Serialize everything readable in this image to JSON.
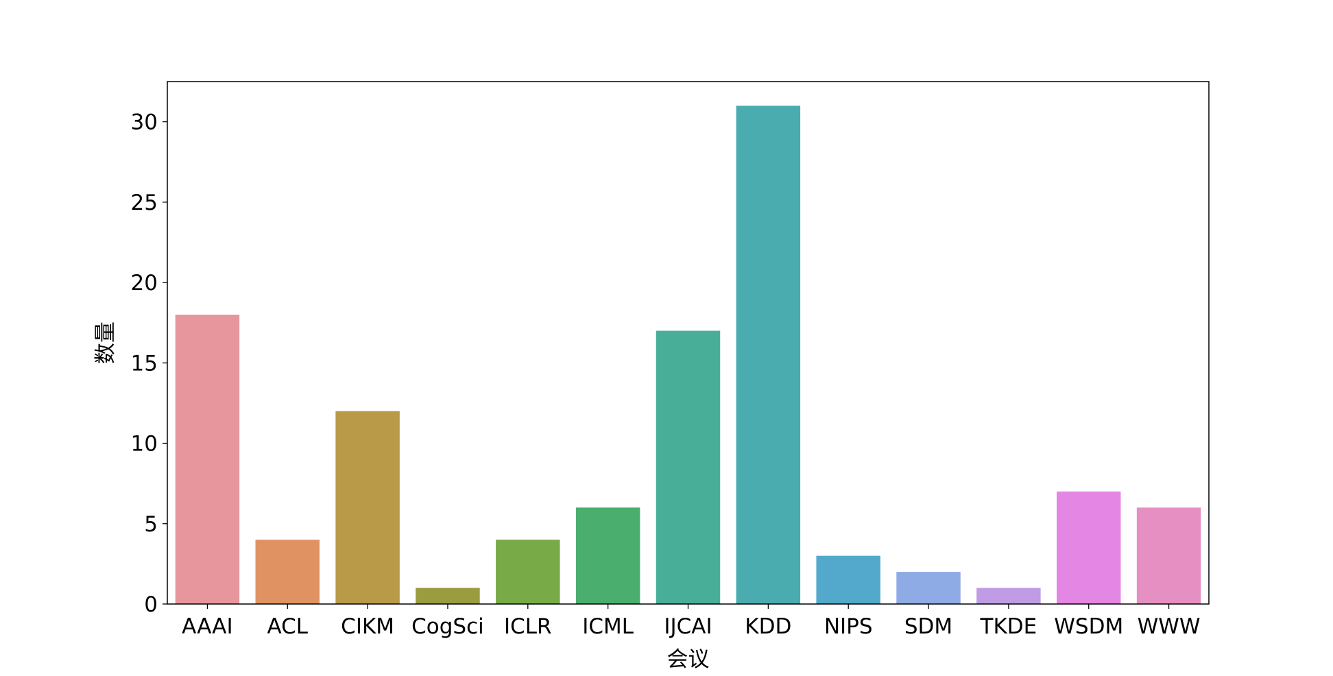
{
  "chart_data": {
    "type": "bar",
    "title": "",
    "xlabel": "会议",
    "ylabel": "数量",
    "ylim": [
      0,
      32.5
    ],
    "yticks": [
      0,
      5,
      10,
      15,
      20,
      25,
      30
    ],
    "grid": false,
    "legend": "none",
    "categories": [
      "AAAI",
      "ACL",
      "CIKM",
      "CogSci",
      "ICLR",
      "ICML",
      "IJCAI",
      "KDD",
      "NIPS",
      "SDM",
      "TKDE",
      "WSDM",
      "WWW"
    ],
    "values": [
      18,
      4,
      12,
      1,
      4,
      6,
      17,
      31,
      3,
      2,
      1,
      7,
      6
    ],
    "colors": [
      "#e8969e",
      "#e19263",
      "#b89a48",
      "#9b9b3f",
      "#79aa48",
      "#4aae6e",
      "#49ae98",
      "#4aacaf",
      "#52a9cb",
      "#8eabe6",
      "#c09be6",
      "#e486e4",
      "#e68fc3"
    ]
  }
}
